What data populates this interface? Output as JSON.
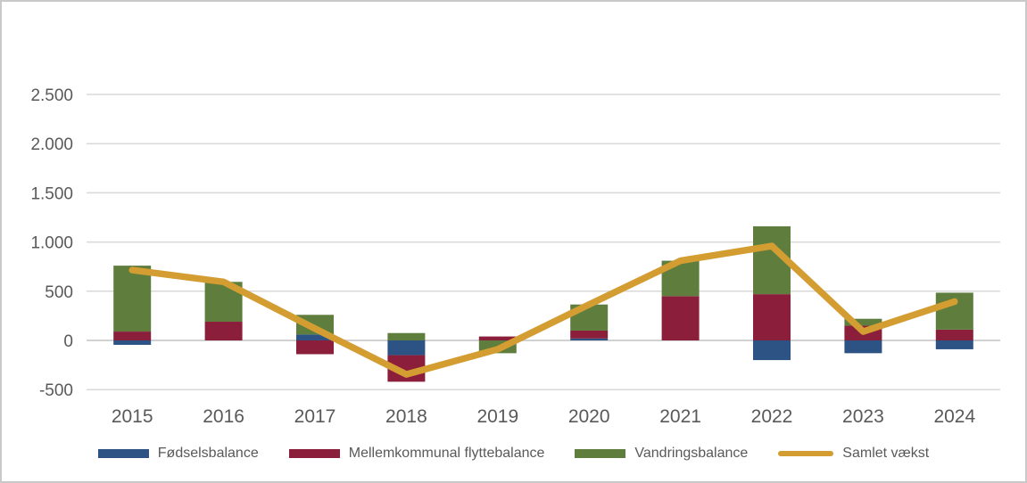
{
  "chart_data": {
    "type": "bar",
    "subtype": "stacked-bars-with-line-overlay",
    "title": "",
    "categories": [
      "2015",
      "2016",
      "2017",
      "2018",
      "2019",
      "2020",
      "2021",
      "2022",
      "2023",
      "2024"
    ],
    "series": [
      {
        "name": "Fødselsbalance",
        "kind": "bar",
        "color": "#2d5385",
        "values": [
          -45,
          0,
          60,
          -150,
          0,
          20,
          0,
          -200,
          -130,
          -90
        ]
      },
      {
        "name": "Mellemkommunal flyttebalance",
        "kind": "bar",
        "color": "#8b1e3b",
        "values": [
          90,
          190,
          -140,
          -270,
          40,
          80,
          450,
          470,
          150,
          110
        ]
      },
      {
        "name": "Vandringsbalance",
        "kind": "bar",
        "color": "#5f7e3e",
        "values": [
          670,
          405,
          200,
          75,
          -130,
          265,
          360,
          690,
          70,
          375
        ]
      },
      {
        "name": "Samlet vækst",
        "kind": "line",
        "color": "#d49d32",
        "values": [
          715,
          595,
          120,
          -345,
          -90,
          365,
          810,
          960,
          90,
          395
        ]
      }
    ],
    "xlabel": "",
    "ylabel": "",
    "ylim": [
      -500,
      2500
    ],
    "y_ticks": [
      2500,
      2000,
      1500,
      1000,
      500,
      0,
      -500
    ],
    "y_tick_labels": [
      "2.500",
      "2.000",
      "1.500",
      "1.000",
      "500",
      "0",
      "-500"
    ],
    "grid": true,
    "legend_position": "bottom"
  },
  "legend": {
    "items": [
      {
        "label": "Fødselsbalance"
      },
      {
        "label": "Mellemkommunal flyttebalance"
      },
      {
        "label": "Vandringsbalance"
      },
      {
        "label": "Samlet vækst"
      }
    ]
  },
  "colors": {
    "fodselsbalance": "#2d5385",
    "mellemkommunal_flyttebalance": "#8b1e3b",
    "vandringsbalance": "#5f7e3e",
    "samlet_vaekst": "#d49d32",
    "gridline": "#d9d9d9",
    "zero_line": "#d2d2d2",
    "axis_text": "#595959",
    "frame_border": "#c9c9c9",
    "background": "#ffffff"
  }
}
